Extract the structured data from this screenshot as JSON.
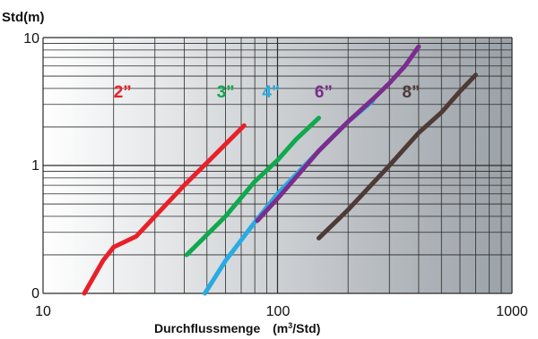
{
  "chart_data": {
    "type": "line",
    "title": "",
    "ylabel": "Std(m)",
    "xlabel_main": "Durchflussmenge",
    "xlabel_unit_pre": "(m",
    "xlabel_unit_sup": "3",
    "xlabel_unit_post": "/Std)",
    "x_scale": "log",
    "y_scale": "log",
    "xlim": [
      10,
      1000
    ],
    "ylim_ticks": [
      {
        "value": "0",
        "label": "0"
      },
      {
        "value": "1",
        "label": "1"
      },
      {
        "value": "10",
        "label": "10"
      }
    ],
    "x_ticks": [
      "10",
      "100",
      "1000"
    ],
    "grid": true,
    "series": [
      {
        "name": "2”",
        "color": "#e8202a",
        "points": [
          [
            15,
            0.1
          ],
          [
            18,
            0.18
          ],
          [
            20,
            0.23
          ],
          [
            22,
            0.25
          ],
          [
            25,
            0.28
          ],
          [
            30,
            0.4
          ],
          [
            40,
            0.7
          ],
          [
            55,
            1.25
          ],
          [
            72,
            2.05
          ]
        ]
      },
      {
        "name": "3”",
        "color": "#11a84e",
        "points": [
          [
            41,
            0.2
          ],
          [
            60,
            0.4
          ],
          [
            80,
            0.75
          ],
          [
            100,
            1.1
          ],
          [
            120,
            1.6
          ],
          [
            150,
            2.35
          ]
        ]
      },
      {
        "name": "4”",
        "color": "#29abe2",
        "points": [
          [
            49,
            0.1
          ],
          [
            60,
            0.18
          ],
          [
            80,
            0.36
          ],
          [
            100,
            0.6
          ],
          [
            150,
            1.3
          ],
          [
            200,
            2.2
          ],
          [
            255,
            3.2
          ]
        ]
      },
      {
        "name": "6”",
        "color": "#7b2d8e",
        "points": [
          [
            82,
            0.37
          ],
          [
            100,
            0.55
          ],
          [
            150,
            1.3
          ],
          [
            200,
            2.2
          ],
          [
            255,
            3.3
          ],
          [
            300,
            4.4
          ],
          [
            350,
            6.0
          ],
          [
            400,
            8.5
          ]
        ]
      },
      {
        "name": "8”",
        "color": "#4e3b36",
        "points": [
          [
            150,
            0.27
          ],
          [
            200,
            0.45
          ],
          [
            300,
            1.0
          ],
          [
            400,
            1.8
          ],
          [
            500,
            2.6
          ],
          [
            600,
            3.8
          ],
          [
            700,
            5.1
          ]
        ]
      }
    ]
  }
}
